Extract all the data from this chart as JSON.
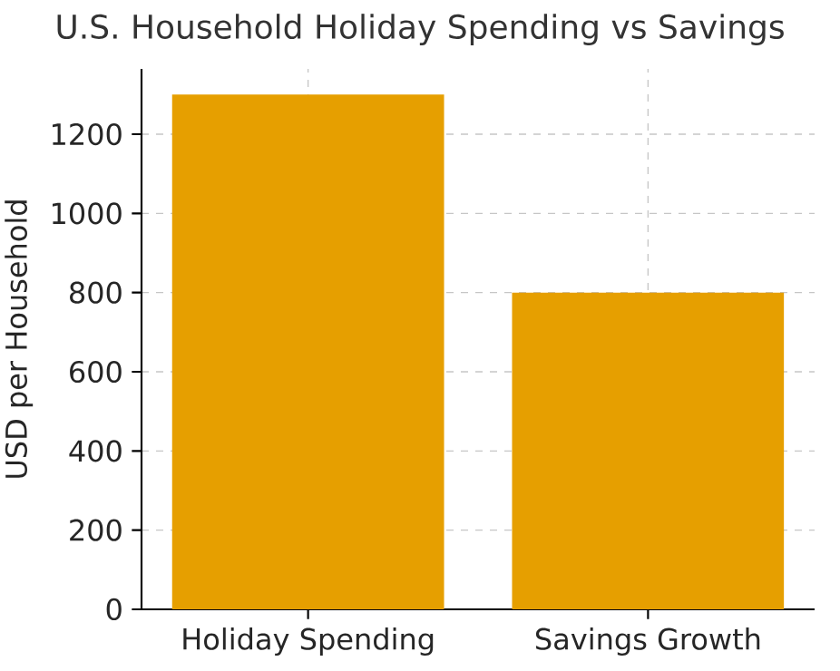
{
  "chart_data": {
    "type": "bar",
    "title": "U.S. Household Holiday Spending vs Savings",
    "ylabel": "USD per Household",
    "categories": [
      "Holiday Spending",
      "Savings Growth"
    ],
    "values": [
      1300,
      800
    ],
    "color": "#e69f00",
    "ylim": [
      0,
      1365
    ],
    "yticks": [
      0,
      200,
      400,
      600,
      800,
      1000,
      1200
    ],
    "grid": true
  }
}
